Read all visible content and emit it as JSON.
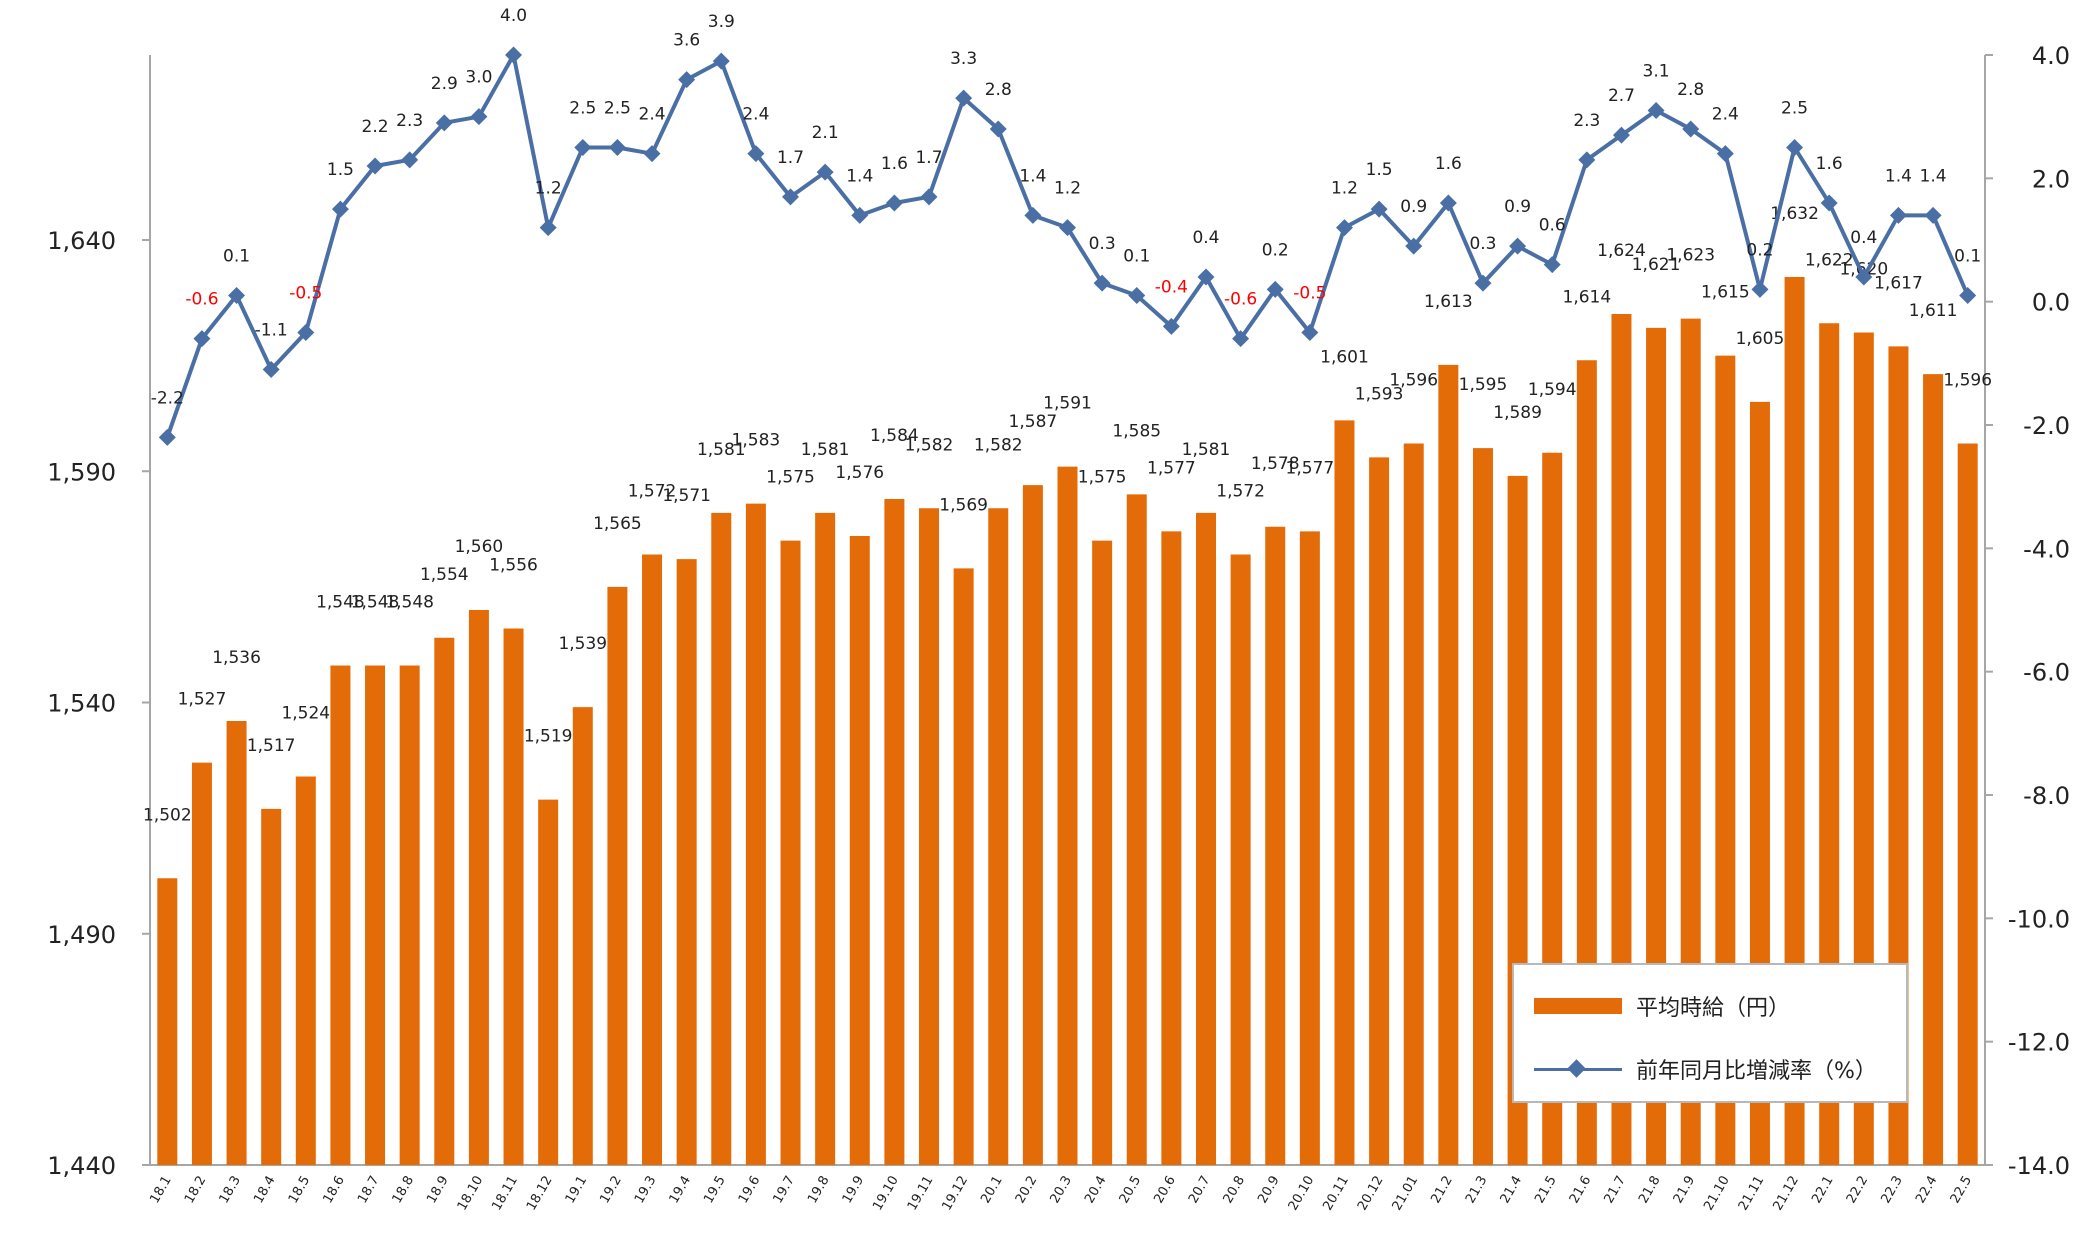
{
  "chart_data": {
    "type": "bar+line",
    "categories": [
      "18.1",
      "18.2",
      "18.3",
      "18.4",
      "18.5",
      "18.6",
      "18.7",
      "18.8",
      "18.9",
      "18.10",
      "18.11",
      "18.12",
      "19.1",
      "19.2",
      "19.3",
      "19.4",
      "19.5",
      "19.6",
      "19.7",
      "19.8",
      "19.9",
      "19.10",
      "19.11",
      "19.12",
      "20.1",
      "20.2",
      "20.3",
      "20.4",
      "20.5",
      "20.6",
      "20.7",
      "20.8",
      "20.9",
      "20.10",
      "20.11",
      "20.12",
      "21.01",
      "21.2",
      "21.3",
      "21.4",
      "21.5",
      "21.6",
      "21.7",
      "21.8",
      "21.9",
      "21.10",
      "21.11",
      "21.12",
      "22.1",
      "22.2",
      "22.3",
      "22.4",
      "22.5"
    ],
    "series": [
      {
        "name": "平均時給（円）",
        "type": "bar",
        "axis": "left",
        "values": [
          1502,
          1527,
          1536,
          1517,
          1524,
          1548,
          1548,
          1548,
          1554,
          1560,
          1556,
          1519,
          1539,
          1565,
          1572,
          1571,
          1581,
          1583,
          1575,
          1581,
          1576,
          1584,
          1582,
          1569,
          1582,
          1587,
          1591,
          1575,
          1585,
          1577,
          1581,
          1572,
          1578,
          1577,
          1601,
          1593,
          1596,
          1613,
          1595,
          1589,
          1594,
          1614,
          1624,
          1621,
          1623,
          1615,
          1605,
          1632,
          1622,
          1620,
          1617,
          1611,
          1596
        ],
        "labels": [
          "1,502",
          "1,527",
          "1,536",
          "1,517",
          "1,524",
          "1,548",
          "1,548",
          "1,548",
          "1,554",
          "1,560",
          "1,556",
          "1,519",
          "1,539",
          "1,565",
          "1,572",
          "1,571",
          "1,581",
          "1,583",
          "1,575",
          "1,581",
          "1,576",
          "1,584",
          "1,582",
          "1,569",
          "1,582",
          "1,587",
          "1,591",
          "1,575",
          "1,585",
          "1,577",
          "1,581",
          "1,572",
          "1,578",
          "1,577",
          "1,601",
          "1,593",
          "1,596",
          "1,613",
          "1,595",
          "1,589",
          "1,594",
          "1,614",
          "1,624",
          "1,621",
          "1,623",
          "1,615",
          "1,605",
          "1,632",
          "1,622",
          "1,620",
          "1,617",
          "1,611",
          "1,596"
        ]
      },
      {
        "name": "前年同月比増減率（%）",
        "type": "line",
        "axis": "right",
        "values": [
          -2.2,
          -0.6,
          0.1,
          -1.1,
          -0.5,
          1.5,
          2.2,
          2.3,
          2.9,
          3.0,
          4.0,
          1.2,
          2.5,
          2.5,
          2.4,
          3.6,
          3.9,
          2.4,
          1.7,
          2.1,
          1.4,
          1.6,
          1.7,
          3.3,
          2.8,
          1.4,
          1.2,
          0.3,
          0.1,
          -0.4,
          0.4,
          -0.6,
          0.2,
          -0.5,
          1.2,
          1.5,
          0.9,
          1.6,
          0.3,
          0.9,
          0.6,
          2.3,
          2.7,
          3.1,
          2.8,
          2.4,
          0.2,
          2.5,
          1.6,
          0.4,
          1.4,
          1.4,
          0.1
        ],
        "labels": [
          "-2.2",
          "-0.6",
          "0.1",
          "-1.1",
          "-0.5",
          "1.5",
          "2.2",
          "2.3",
          "2.9",
          "3.0",
          "4.0",
          "1.2",
          "2.5",
          "2.5",
          "2.4",
          "3.6",
          "3.9",
          "2.4",
          "1.7",
          "2.1",
          "1.4",
          "1.6",
          "1.7",
          "3.3",
          "2.8",
          "1.4",
          "1.2",
          "0.3",
          "0.1",
          "-0.4",
          "0.4",
          "-0.6",
          "0.2",
          "-0.5",
          "1.2",
          "1.5",
          "0.9",
          "1.6",
          "0.3",
          "0.9",
          "0.6",
          "2.3",
          "2.7",
          "3.1",
          "2.8",
          "2.4",
          "0.2",
          "2.5",
          "1.6",
          "0.4",
          "1.4",
          "1.4",
          "0.1"
        ]
      }
    ],
    "left_axis": {
      "ylim": [
        1440,
        1680
      ],
      "ticks": [
        1440,
        1490,
        1540,
        1590,
        1640
      ],
      "tick_labels": [
        "1,440",
        "1,490",
        "1,540",
        "1,590",
        "1,640"
      ]
    },
    "right_axis": {
      "ylim": [
        -14.0,
        4.0
      ],
      "ticks": [
        4.0,
        2.0,
        0.0,
        -2.0,
        -4.0,
        -6.0,
        -8.0,
        -10.0,
        -12.0,
        -14.0
      ],
      "tick_labels": [
        "4.0",
        "2.0",
        "0.0",
        "-2.0",
        "-4.0",
        "-6.0",
        "-8.0",
        "-10.0",
        "-12.0",
        "-14.0"
      ]
    },
    "grid": false,
    "legend_position": "bottom-right",
    "colors": {
      "bar": "#E36C09",
      "line": "#4A6FA5",
      "negative_label": "#FF0000",
      "axis": "#A6A6A6",
      "text": "#222222"
    },
    "title": "",
    "xlabel": "",
    "ylabel": ""
  },
  "legend": {
    "bar_label": "平均時給（円）",
    "line_label": "前年同月比増減率（%）"
  }
}
